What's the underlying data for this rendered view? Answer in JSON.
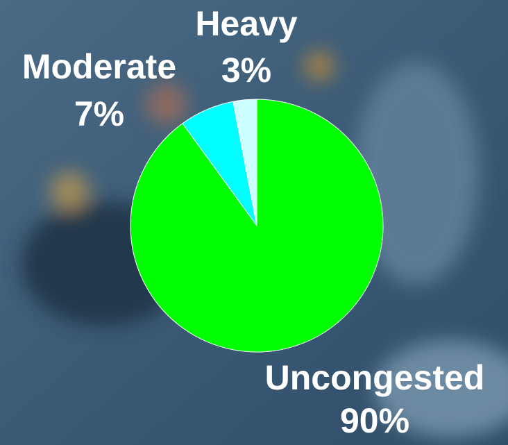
{
  "chart_data": {
    "type": "pie",
    "categories": [
      "Uncongested",
      "Moderate",
      "Heavy"
    ],
    "values": [
      90,
      7,
      3
    ],
    "value_labels": [
      "90%",
      "7%",
      "3%"
    ],
    "colors": [
      "#00ff00",
      "#00ffff",
      "#ccffff"
    ]
  }
}
